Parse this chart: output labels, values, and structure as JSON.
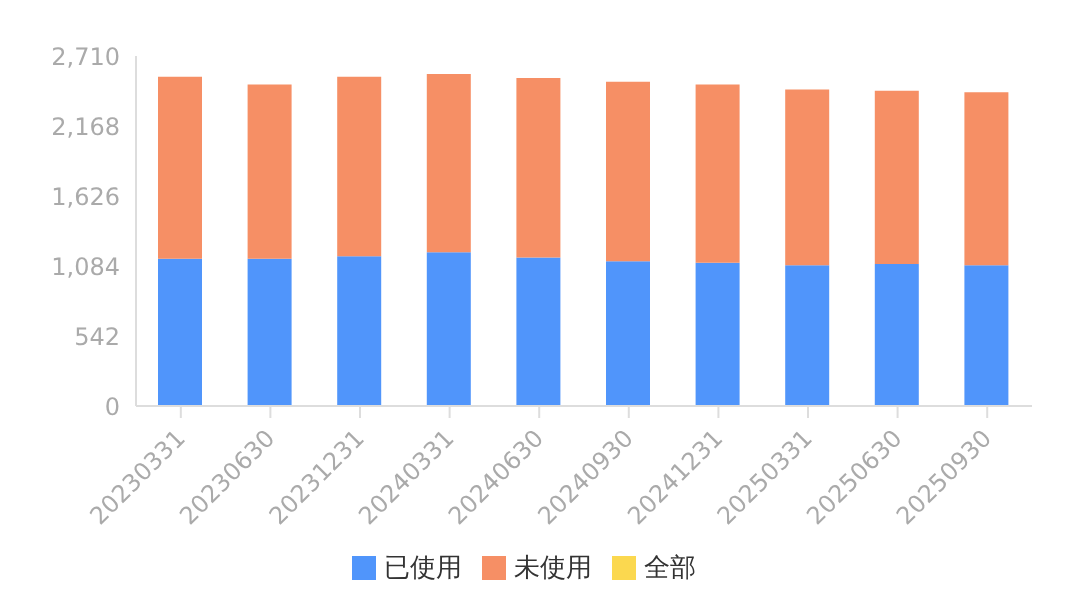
{
  "chart_data": {
    "type": "bar",
    "stacked": true,
    "categories": [
      "20230331",
      "20230630",
      "20231231",
      "20240331",
      "20240630",
      "20240930",
      "20241231",
      "20250331",
      "20250630",
      "20250930"
    ],
    "series": [
      {
        "name": "已使用",
        "color": "#5095fb",
        "values": [
          1140,
          1140,
          1160,
          1190,
          1150,
          1120,
          1110,
          1090,
          1100,
          1090
        ]
      },
      {
        "name": "未使用",
        "color": "#f68f65",
        "values": [
          1410,
          1350,
          1390,
          1380,
          1390,
          1390,
          1380,
          1360,
          1340,
          1340
        ]
      },
      {
        "name": "全部",
        "color": "#fbd84f",
        "values": [
          null,
          null,
          null,
          null,
          null,
          null,
          null,
          null,
          null,
          null
        ]
      }
    ],
    "ylim": [
      0,
      2710
    ],
    "yticks": [
      0,
      542,
      {
        "value": 1084,
        "label": "1,084"
      },
      {
        "value": 1626,
        "label": "1,626"
      },
      {
        "value": 2168,
        "label": "2,168"
      },
      {
        "value": 2710,
        "label": "2,710"
      }
    ],
    "grid": false,
    "legend": "bottom"
  }
}
